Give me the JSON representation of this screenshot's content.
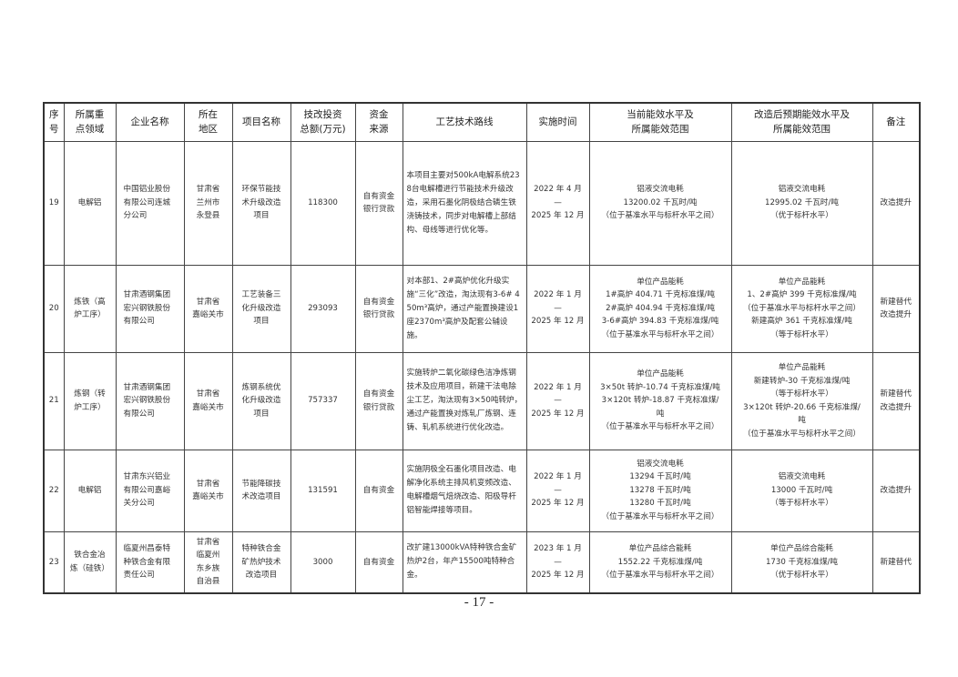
{
  "headers": [
    "序\n号",
    "所属重\n点领域",
    "企业名称",
    "所在\n地区",
    "项目名称",
    "技改投资\n总额(万元)",
    "资金\n来源",
    "工艺技术路线",
    "实施时间",
    "当前能效水平及\n所属能效范围",
    "改造后预期能效水平及\n所属能效范围",
    "备注"
  ],
  "rows": [
    {
      "no": "19",
      "field": "电解铝",
      "company": "中国铝业股份\n有限公司连城\n分公司",
      "region": "甘肃省\n兰州市\n永登县",
      "project": "环保节能技\n术升级改造\n项目",
      "invest": "118300",
      "fund": "自有资金\n银行贷款",
      "route": "本项目主要对500kA电解系统238台电解槽进行节能技术升级改造，采用石墨化阴极结合磷生铁浇铸技术，同步对电解槽上部结构、母线等进行优化等。",
      "time": "2022 年 4 月\n—\n2025 年 12 月",
      "current": "铝液交流电耗\n13200.02 千瓦时/吨\n（位于基准水平与标杆水平之间）",
      "expected": "铝液交流电耗\n12995.02 千瓦时/吨\n（优于标杆水平）",
      "note": "改造提升"
    },
    {
      "no": "20",
      "field": "炼铁（高\n炉工序）",
      "company": "甘肃酒钢集团\n宏兴钢铁股份\n有限公司",
      "region": "甘肃省\n嘉峪关市",
      "project": "工艺装备三\n化升级改造\n项目",
      "invest": "293093",
      "fund": "自有资金\n银行贷款",
      "route": "对本部1、2#高炉优化升级实施“三化”改造，淘汰现有3-6# 450m³高炉，通过产能置换建设1座2370m³高炉及配套公辅设施。",
      "time": "2022 年 1 月\n—\n2025 年 12 月",
      "current": "单位产品能耗\n1#高炉 404.71 千克标准煤/吨\n2#高炉 404.94 千克标准煤/吨\n3-6#高炉 394.83 千克标准煤/吨\n（位于基准水平与标杆水平之间）",
      "expected": "单位产品能耗\n1、2#高炉 399 千克标准煤/吨\n（位于基准水平与标杆水平之间）\n新建高炉 361 千克标准煤/吨\n（等于标杆水平）",
      "note": "新建替代\n改造提升"
    },
    {
      "no": "21",
      "field": "炼钢（转\n炉工序）",
      "company": "甘肃酒钢集团\n宏兴钢铁股份\n有限公司",
      "region": "甘肃省\n嘉峪关市",
      "project": "炼钢系统优\n化升级改造\n项目",
      "invest": "757337",
      "fund": "自有资金\n银行贷款",
      "route": "实施转炉二氧化碳绿色洁净炼钢技术及应用项目，新建干法电除尘工艺，淘汰现有3×50吨转炉，通过产能置换对炼轧厂炼钢、连铸、轧机系统进行优化改造。",
      "time": "2022 年 1 月\n—\n2025 年 12 月",
      "current": "单位产品能耗\n3×50t 转炉-10.74 千克标准煤/吨\n3×120t 转炉-18.87 千克标准煤/\n吨\n（位于基准水平与标杆水平之间）",
      "expected": "单位产品能耗\n新建转炉-30 千克标准煤/吨\n（等于标杆水平）\n3×120t 转炉-20.66 千克标准煤/\n吨\n（位于基准水平与标杆水平之间）",
      "note": "新建替代\n改造提升"
    },
    {
      "no": "22",
      "field": "电解铝",
      "company": "甘肃东兴铝业\n有限公司嘉峪\n关分公司",
      "region": "甘肃省\n嘉峪关市",
      "project": "节能降碳技\n术改造项目",
      "invest": "131591",
      "fund": "自有资金",
      "route": "实施阴极全石墨化项目改造、电解净化系统主排风机变频改造、电解槽烟气焙烧改造、阳极导杆铝智能焊接等项目。",
      "time": "2022 年 1 月\n—\n2025 年 12 月",
      "current": "铝液交流电耗\n13294 千瓦时/吨\n13278 千瓦时/吨\n13280 千瓦时/吨\n（位于基准水平与标杆水平之间）",
      "expected": "铝液交流电耗\n13000 千瓦时/吨\n（等于标杆水平）",
      "note": "改造提升"
    },
    {
      "no": "23",
      "field": "铁合金冶\n炼（硅铁）",
      "company": "临夏州昌泰特\n种铁合金有限\n责任公司",
      "region": "甘肃省\n临夏州\n东乡族\n自治县",
      "project": "特种铁合金\n矿热炉技术\n改造项目",
      "invest": "3000",
      "fund": "自有资金",
      "route": "改扩建13000kVA特种铁合金矿热炉2台，年产15500吨特种合金。",
      "time": "2023 年 1 月\n—\n2025 年 12 月",
      "current": "单位产品综合能耗\n1552.22 千克标准煤/吨\n（位于基准水平与标杆水平之间）",
      "expected": "单位产品综合能耗\n1730 千克标准煤/吨\n（优于标杆水平）",
      "note": "新建替代"
    }
  ],
  "page_number": "- 17 -"
}
